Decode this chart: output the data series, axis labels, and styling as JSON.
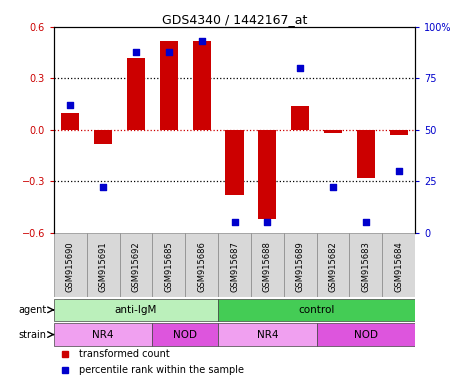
{
  "title": "GDS4340 / 1442167_at",
  "samples": [
    "GSM915690",
    "GSM915691",
    "GSM915692",
    "GSM915685",
    "GSM915686",
    "GSM915687",
    "GSM915688",
    "GSM915689",
    "GSM915682",
    "GSM915683",
    "GSM915684"
  ],
  "bar_values": [
    0.1,
    -0.08,
    0.42,
    0.52,
    0.52,
    -0.38,
    -0.52,
    0.14,
    -0.02,
    -0.28,
    -0.03
  ],
  "dot_values": [
    62,
    22,
    88,
    88,
    93,
    5,
    5,
    80,
    22,
    5,
    30
  ],
  "ylim": [
    -0.6,
    0.6
  ],
  "y2lim": [
    0,
    100
  ],
  "yticks": [
    -0.6,
    -0.3,
    0.0,
    0.3,
    0.6
  ],
  "y2ticks": [
    0,
    25,
    50,
    75,
    100
  ],
  "bar_color": "#cc0000",
  "dot_color": "#0000cc",
  "zero_line_color": "#cc0000",
  "dotted_line_color": "#000000",
  "agent_labels": [
    {
      "label": "anti-IgM",
      "start": 0,
      "end": 5,
      "color_light": "#b8f0b8",
      "color_dark": "#33cc55"
    },
    {
      "label": "control",
      "start": 5,
      "end": 11,
      "color_light": "#44cc55",
      "color_dark": "#33cc55"
    }
  ],
  "strain_labels": [
    {
      "label": "NR4",
      "start": 0,
      "end": 3,
      "color": "#f0a0f0"
    },
    {
      "label": "NOD",
      "start": 3,
      "end": 5,
      "color": "#dd55dd"
    },
    {
      "label": "NR4",
      "start": 5,
      "end": 8,
      "color": "#f0a0f0"
    },
    {
      "label": "NOD",
      "start": 8,
      "end": 11,
      "color": "#dd55dd"
    }
  ],
  "legend_items": [
    {
      "label": "transformed count",
      "color": "#cc0000"
    },
    {
      "label": "percentile rank within the sample",
      "color": "#0000cc"
    }
  ],
  "bg_color": "#ffffff",
  "tick_color_left": "#cc0000",
  "tick_color_right": "#0000cc",
  "grid_hlines": [
    -0.3,
    0.0,
    0.3
  ],
  "bar_width": 0.55,
  "xtick_bg": "#d8d8d8"
}
